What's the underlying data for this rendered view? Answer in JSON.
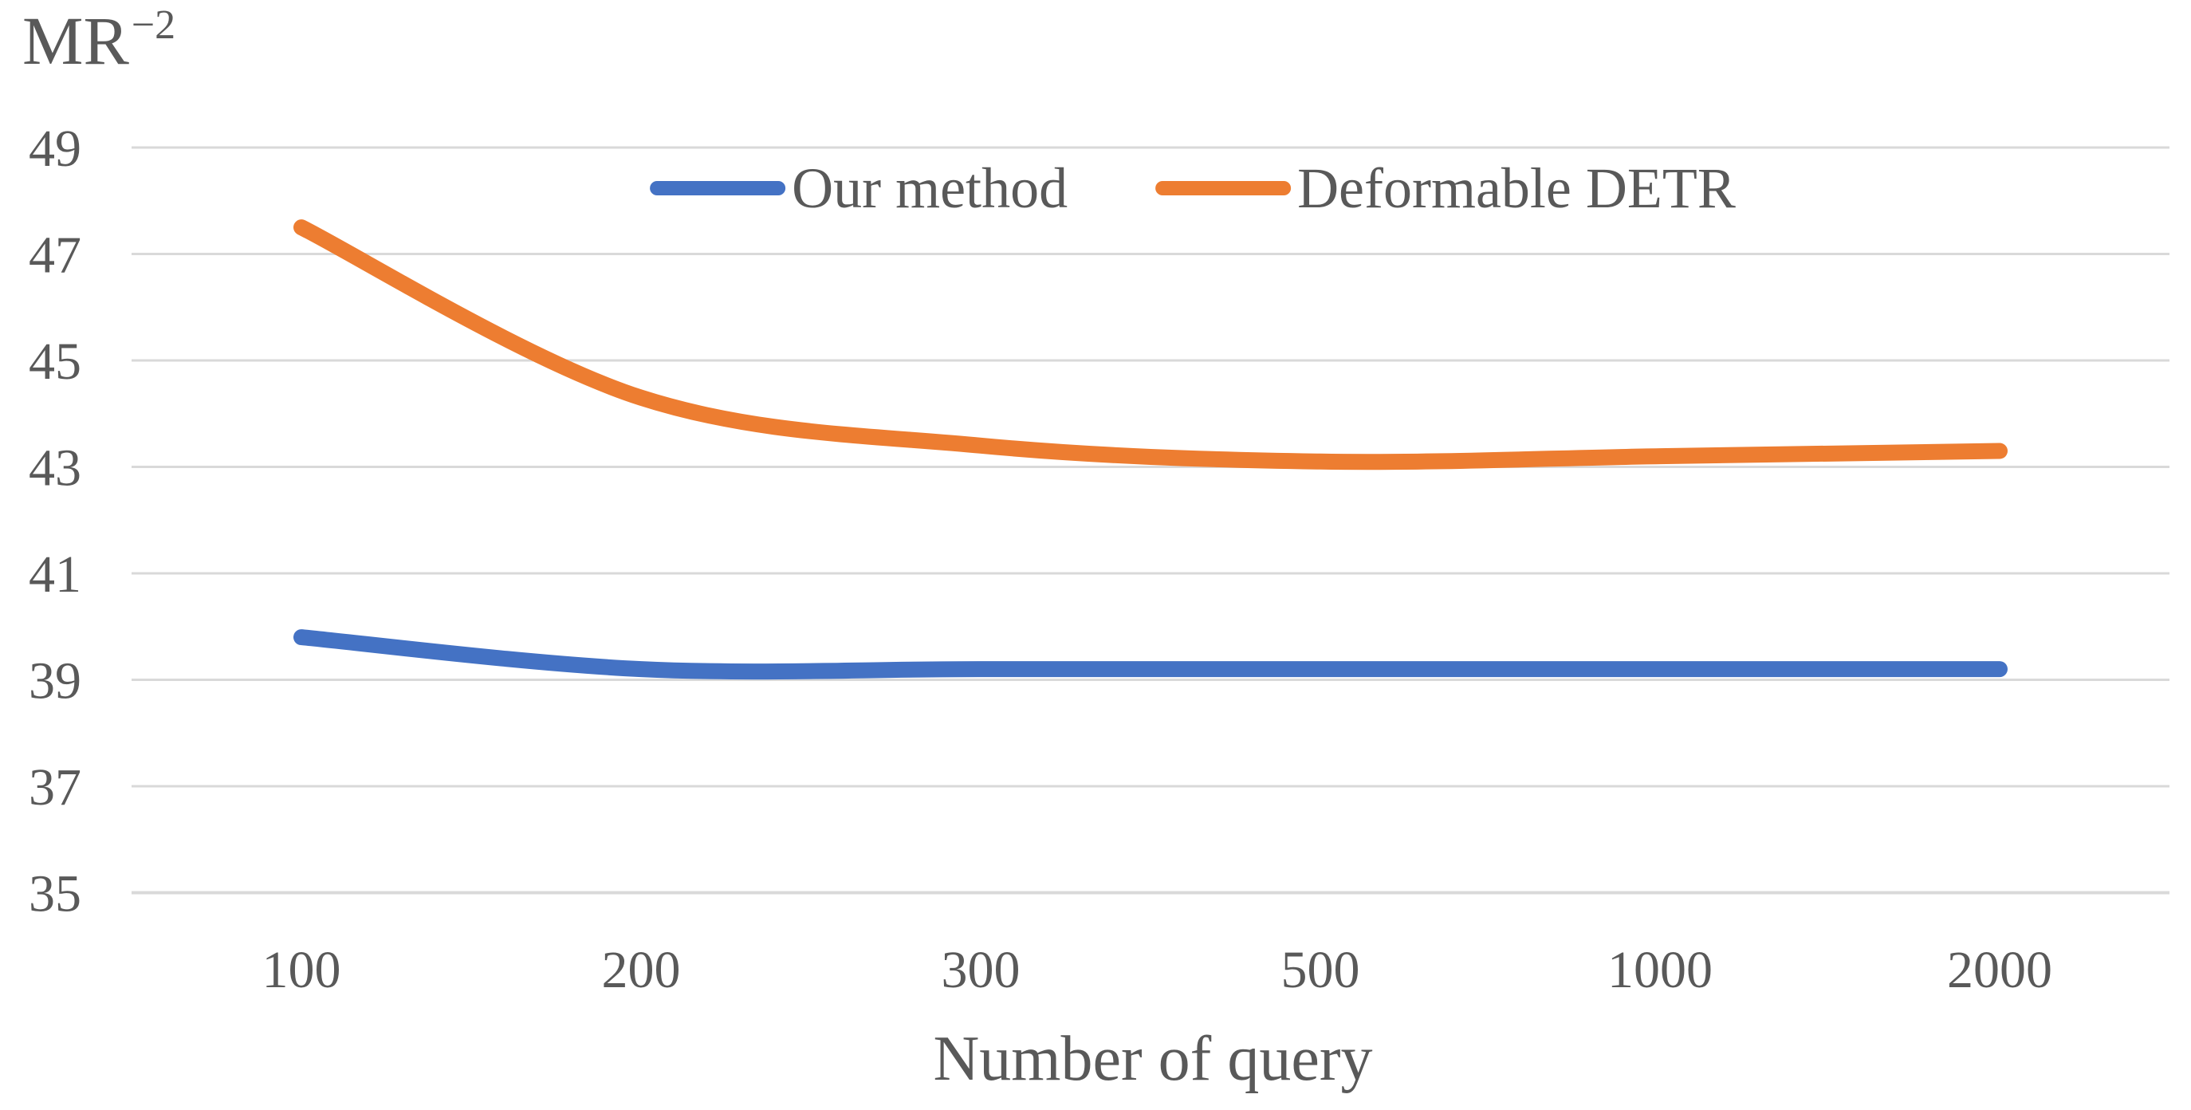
{
  "chart_data": {
    "type": "line",
    "title": "MR⁻²",
    "title_base": "MR",
    "title_exponent": "−2",
    "xlabel": "Number of query",
    "categories": [
      "100",
      "200",
      "300",
      "500",
      "1000",
      "2000"
    ],
    "series": [
      {
        "name": "Our method",
        "color": "#4472C4",
        "values": [
          39.8,
          39.2,
          39.2,
          39.2,
          39.2,
          39.2
        ]
      },
      {
        "name": "Deformable DETR",
        "color": "#ED7D31",
        "values": [
          47.5,
          44.3,
          43.4,
          43.1,
          43.2,
          43.3
        ]
      }
    ],
    "yticks": [
      35,
      37,
      39,
      41,
      43,
      45,
      47,
      49
    ],
    "ylim": [
      35,
      49
    ],
    "grid": true,
    "legend_position": "top-center",
    "line_smoothing": true,
    "colors": {
      "gridline": "#D9D9D9",
      "axis_text": "#595959",
      "background": "#FFFFFF"
    }
  }
}
